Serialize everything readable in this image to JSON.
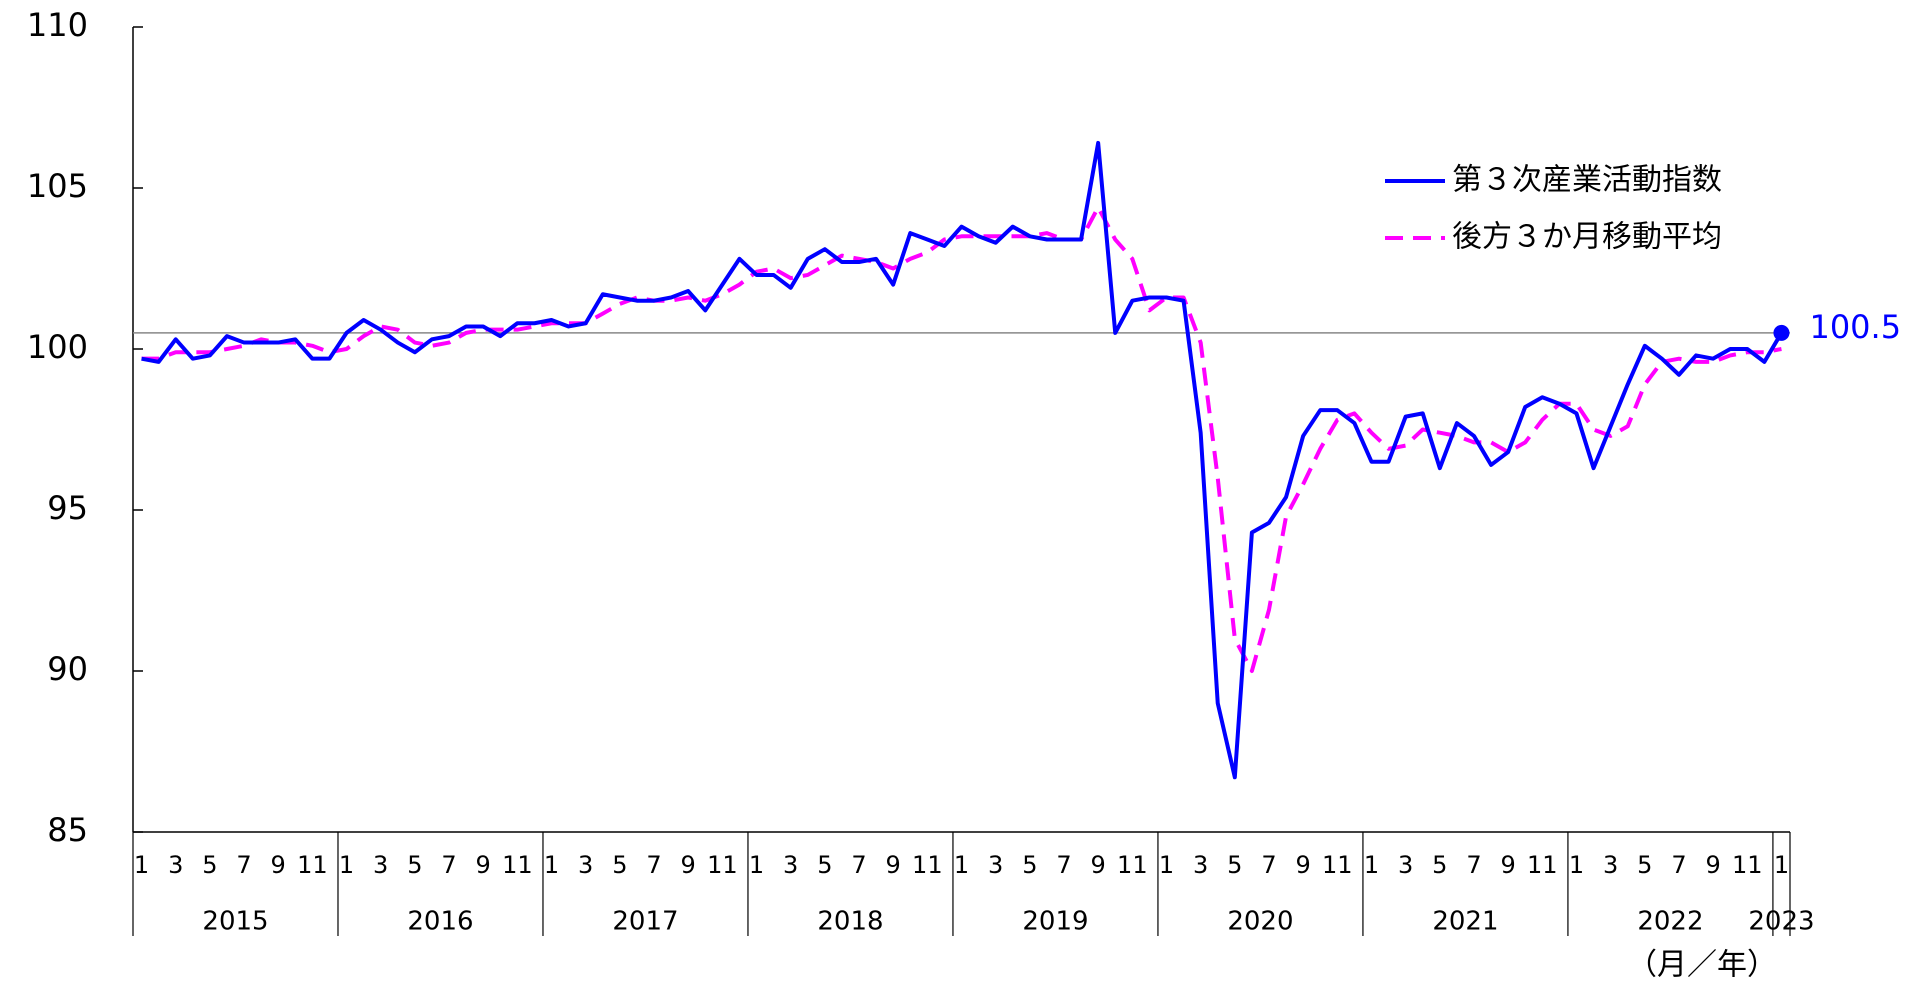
{
  "chart_data": {
    "type": "line",
    "x_label": "（月／年）",
    "categories": [
      "1",
      null,
      "3",
      null,
      "5",
      null,
      "7",
      null,
      "9",
      null,
      "11",
      null,
      "1",
      null,
      "3",
      null,
      "5",
      null,
      "7",
      null,
      "9",
      null,
      "11",
      null,
      "1",
      null,
      "3",
      null,
      "5",
      null,
      "7",
      null,
      "9",
      null,
      "11",
      null,
      "1",
      null,
      "3",
      null,
      "5",
      null,
      "7",
      null,
      "9",
      null,
      "11",
      null,
      "1",
      null,
      "3",
      null,
      "5",
      null,
      "7",
      null,
      "9",
      null,
      "11",
      null,
      "1",
      null,
      "3",
      null,
      "5",
      null,
      "7",
      null,
      "9",
      null,
      "11",
      null,
      "1",
      null,
      "3",
      null,
      "5",
      null,
      "7",
      null,
      "9",
      null,
      "11",
      null,
      "1",
      null,
      "3",
      null,
      "5",
      null,
      "7",
      null,
      "9",
      null,
      "11",
      null,
      "1"
    ],
    "years": [
      "2015",
      "2016",
      "2017",
      "2018",
      "2019",
      "2020",
      "2021",
      "2022",
      "2023"
    ],
    "ylim": [
      85,
      110
    ],
    "yticks": [
      85,
      90,
      95,
      100,
      105,
      110
    ],
    "reference_line": 100.5,
    "label_last": true,
    "series": [
      {
        "name": "第３次産業活動指数",
        "color": "#0000ff",
        "style": "solid",
        "values": [
          99.7,
          99.6,
          100.3,
          99.7,
          99.8,
          100.4,
          100.2,
          100.2,
          100.2,
          100.3,
          99.7,
          99.7,
          100.5,
          100.9,
          100.6,
          100.2,
          99.9,
          100.3,
          100.4,
          100.7,
          100.7,
          100.4,
          100.8,
          100.8,
          100.9,
          100.7,
          100.8,
          101.7,
          101.6,
          101.5,
          101.5,
          101.6,
          101.8,
          101.2,
          102.0,
          102.8,
          102.3,
          102.3,
          101.9,
          102.8,
          103.1,
          102.7,
          102.7,
          102.8,
          102.0,
          103.6,
          103.4,
          103.2,
          103.8,
          103.5,
          103.3,
          103.8,
          103.5,
          103.4,
          103.4,
          103.4,
          106.4,
          100.5,
          101.5,
          101.6,
          101.6,
          101.5,
          97.4,
          89.0,
          86.7,
          94.3,
          94.6,
          95.4,
          97.3,
          98.1,
          98.1,
          97.7,
          96.5,
          96.5,
          97.9,
          98.0,
          96.3,
          97.7,
          97.3,
          96.4,
          96.8,
          98.2,
          98.5,
          98.3,
          98.0,
          96.3,
          97.6,
          98.9,
          100.1,
          99.7,
          99.2,
          99.8,
          99.7,
          100.0,
          100.0,
          99.6,
          100.5
        ]
      },
      {
        "name": "後方３か月移動平均",
        "color": "#ff00ff",
        "style": "dashed",
        "values": [
          99.7,
          99.7,
          99.9,
          99.9,
          99.9,
          100.0,
          100.1,
          100.3,
          100.2,
          100.2,
          100.1,
          99.9,
          100.0,
          100.4,
          100.7,
          100.6,
          100.2,
          100.1,
          100.2,
          100.5,
          100.6,
          100.6,
          100.6,
          100.7,
          100.8,
          100.8,
          100.8,
          101.1,
          101.4,
          101.6,
          101.5,
          101.5,
          101.6,
          101.5,
          101.7,
          102.0,
          102.4,
          102.5,
          102.2,
          102.3,
          102.6,
          102.9,
          102.8,
          102.7,
          102.5,
          102.8,
          103.0,
          103.4,
          103.5,
          103.5,
          103.5,
          103.5,
          103.5,
          103.6,
          103.4,
          103.4,
          104.4,
          103.4,
          102.8,
          101.2,
          101.6,
          101.6,
          100.2,
          96.0,
          91.0,
          90.0,
          91.9,
          94.8,
          95.8,
          96.9,
          97.8,
          98.0,
          97.4,
          96.9,
          97.0,
          97.5,
          97.4,
          97.3,
          97.1,
          97.1,
          96.8,
          97.1,
          97.8,
          98.3,
          98.3,
          97.5,
          97.3,
          97.6,
          98.9,
          99.6,
          99.7,
          99.6,
          99.6,
          99.8,
          99.9,
          99.9,
          100.0
        ]
      }
    ]
  }
}
